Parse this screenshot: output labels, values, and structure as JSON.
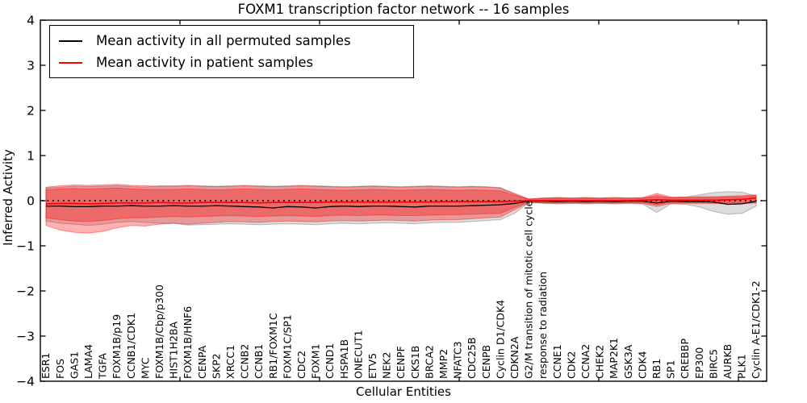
{
  "chart_data": {
    "type": "line",
    "title": "FOXM1 transcription factor network -- 16 samples",
    "xlabel": "Cellular Entities",
    "ylabel": "Inferred Activity",
    "ylim": [
      -4,
      4
    ],
    "yticks": [
      -4,
      -3,
      -2,
      -1,
      0,
      1,
      2,
      3,
      4
    ],
    "ytick_labels": [
      "−4",
      "−3",
      "−2",
      "−1",
      "0",
      "1",
      "2",
      "3",
      "4"
    ],
    "grid": false,
    "zero_reference_line": "black dotted at y=0",
    "legend_position": "upper left",
    "categories": [
      "ESR1",
      "FOS",
      "GAS1",
      "LAMA4",
      "TGFA",
      "FOXM1B/p19",
      "CCNB1/CDK1",
      "MYC",
      "FOXM1B/Cbp/p300",
      "HIST1H2BA",
      "FOXM1B/HNF6",
      "CENPA",
      "SKP2",
      "XRCC1",
      "CCNB2",
      "CCNB1",
      "RB1/FOXM1C",
      "FOXM1C/SP1",
      "CDC2",
      "FOXM1",
      "CCND1",
      "HSPA1B",
      "ONECUT1",
      "ETV5",
      "NEK2",
      "CENPF",
      "CKS1B",
      "BRCA2",
      "MMP2",
      "NFATC3",
      "CDC25B",
      "CENPB",
      "Cyclin D1/CDK4",
      "CDKN2A",
      "G2/M transition of mitotic cell cycle",
      "response to radiation",
      "CCNE1",
      "CDK2",
      "CCNA2",
      "CHEK2",
      "MAP2K1",
      "GSK3A",
      "CDK4",
      "RB1",
      "SP1",
      "CREBBP",
      "EP300",
      "BIRC5",
      "AURKB",
      "PLK1",
      "Cyclin A-E1/CDK1-2"
    ],
    "series": [
      {
        "name": "Mean activity in all permuted samples",
        "color": "#000000",
        "values": [
          -0.12,
          -0.12,
          -0.13,
          -0.13,
          -0.12,
          -0.12,
          -0.11,
          -0.12,
          -0.12,
          -0.11,
          -0.12,
          -0.12,
          -0.11,
          -0.12,
          -0.13,
          -0.14,
          -0.16,
          -0.13,
          -0.14,
          -0.16,
          -0.13,
          -0.12,
          -0.13,
          -0.12,
          -0.12,
          -0.13,
          -0.14,
          -0.12,
          -0.12,
          -0.12,
          -0.11,
          -0.1,
          -0.09,
          -0.06,
          -0.01,
          -0.01,
          -0.02,
          -0.01,
          -0.02,
          -0.01,
          -0.02,
          -0.01,
          -0.01,
          -0.05,
          -0.01,
          -0.02,
          -0.02,
          -0.03,
          -0.08,
          -0.07,
          -0.01
        ]
      },
      {
        "name": "Mean activity in patient samples",
        "color": "#ff0000",
        "values": [
          -0.07,
          -0.06,
          -0.06,
          -0.07,
          -0.06,
          -0.05,
          -0.05,
          -0.05,
          -0.04,
          -0.05,
          -0.05,
          -0.04,
          -0.04,
          -0.04,
          -0.04,
          -0.05,
          -0.04,
          -0.04,
          -0.04,
          -0.04,
          -0.03,
          -0.03,
          -0.03,
          -0.03,
          -0.03,
          -0.03,
          -0.03,
          -0.03,
          -0.02,
          -0.02,
          -0.02,
          -0.02,
          -0.02,
          -0.01,
          0.0,
          0.0,
          0.0,
          0.0,
          0.0,
          0.0,
          0.0,
          0.0,
          0.01,
          0.02,
          0.01,
          0.01,
          0.01,
          0.01,
          0.02,
          0.03,
          0.06
        ]
      }
    ],
    "bands": [
      {
        "name": "permuted-samples-range",
        "fill": "rgba(128,128,128,0.28)",
        "edge": "rgba(110,110,110,0.45)",
        "upper": [
          0.28,
          0.3,
          0.32,
          0.31,
          0.32,
          0.33,
          0.31,
          0.3,
          0.33,
          0.33,
          0.34,
          0.33,
          0.32,
          0.33,
          0.34,
          0.33,
          0.32,
          0.33,
          0.34,
          0.33,
          0.32,
          0.31,
          0.32,
          0.33,
          0.32,
          0.31,
          0.32,
          0.33,
          0.32,
          0.31,
          0.32,
          0.31,
          0.29,
          0.14,
          0.03,
          0.06,
          0.07,
          0.06,
          0.07,
          0.06,
          0.07,
          0.06,
          0.07,
          0.08,
          0.07,
          0.08,
          0.13,
          0.18,
          0.2,
          0.19,
          0.1
        ],
        "lower": [
          -0.45,
          -0.5,
          -0.52,
          -0.55,
          -0.52,
          -0.48,
          -0.46,
          -0.48,
          -0.5,
          -0.5,
          -0.54,
          -0.53,
          -0.52,
          -0.51,
          -0.52,
          -0.53,
          -0.52,
          -0.51,
          -0.52,
          -0.53,
          -0.51,
          -0.5,
          -0.51,
          -0.5,
          -0.49,
          -0.5,
          -0.51,
          -0.49,
          -0.48,
          -0.48,
          -0.46,
          -0.44,
          -0.42,
          -0.28,
          -0.04,
          -0.06,
          -0.07,
          -0.06,
          -0.07,
          -0.06,
          -0.07,
          -0.06,
          -0.07,
          -0.26,
          -0.07,
          -0.08,
          -0.14,
          -0.24,
          -0.3,
          -0.28,
          -0.12
        ]
      },
      {
        "name": "patient-samples-range-outer",
        "fill": "rgba(255,0,0,0.30)",
        "edge": "rgba(255,0,0,0.40)",
        "upper": [
          0.3,
          0.33,
          0.35,
          0.34,
          0.35,
          0.36,
          0.34,
          0.33,
          0.32,
          0.32,
          0.33,
          0.32,
          0.31,
          0.32,
          0.33,
          0.32,
          0.31,
          0.32,
          0.33,
          0.32,
          0.31,
          0.3,
          0.31,
          0.32,
          0.31,
          0.3,
          0.31,
          0.32,
          0.31,
          0.3,
          0.31,
          0.3,
          0.28,
          0.16,
          0.04,
          0.06,
          0.07,
          0.06,
          0.07,
          0.06,
          0.07,
          0.06,
          0.07,
          0.16,
          0.08,
          0.08,
          0.09,
          0.09,
          0.1,
          0.11,
          0.13
        ],
        "lower": [
          -0.55,
          -0.65,
          -0.7,
          -0.72,
          -0.68,
          -0.6,
          -0.55,
          -0.56,
          -0.52,
          -0.5,
          -0.52,
          -0.5,
          -0.48,
          -0.46,
          -0.47,
          -0.48,
          -0.46,
          -0.45,
          -0.46,
          -0.47,
          -0.45,
          -0.44,
          -0.45,
          -0.44,
          -0.43,
          -0.44,
          -0.45,
          -0.43,
          -0.42,
          -0.42,
          -0.4,
          -0.38,
          -0.36,
          -0.2,
          -0.04,
          -0.05,
          -0.06,
          -0.05,
          -0.06,
          -0.05,
          -0.06,
          -0.05,
          -0.06,
          -0.13,
          -0.06,
          -0.06,
          -0.06,
          -0.06,
          -0.07,
          -0.07,
          -0.05
        ]
      },
      {
        "name": "patient-samples-range-inner",
        "fill": "rgba(255,0,0,0.30)",
        "edge": "rgba(255,0,0,0.40)",
        "upper": [
          0.24,
          0.26,
          0.27,
          0.26,
          0.27,
          0.28,
          0.26,
          0.25,
          0.25,
          0.25,
          0.26,
          0.25,
          0.24,
          0.25,
          0.26,
          0.25,
          0.24,
          0.25,
          0.26,
          0.25,
          0.24,
          0.23,
          0.24,
          0.25,
          0.24,
          0.23,
          0.24,
          0.25,
          0.24,
          0.23,
          0.24,
          0.23,
          0.22,
          0.12,
          0.03,
          0.04,
          0.05,
          0.04,
          0.05,
          0.04,
          0.05,
          0.04,
          0.05,
          0.12,
          0.06,
          0.06,
          0.07,
          0.07,
          0.08,
          0.09,
          0.11
        ],
        "lower": [
          -0.38,
          -0.42,
          -0.45,
          -0.46,
          -0.44,
          -0.4,
          -0.38,
          -0.38,
          -0.36,
          -0.35,
          -0.36,
          -0.35,
          -0.34,
          -0.33,
          -0.34,
          -0.35,
          -0.34,
          -0.33,
          -0.34,
          -0.35,
          -0.33,
          -0.32,
          -0.33,
          -0.32,
          -0.32,
          -0.33,
          -0.33,
          -0.32,
          -0.31,
          -0.31,
          -0.3,
          -0.29,
          -0.28,
          -0.15,
          -0.03,
          -0.04,
          -0.04,
          -0.04,
          -0.04,
          -0.04,
          -0.04,
          -0.04,
          -0.04,
          -0.09,
          -0.04,
          -0.04,
          -0.04,
          -0.04,
          -0.05,
          -0.05,
          -0.04
        ]
      }
    ]
  }
}
